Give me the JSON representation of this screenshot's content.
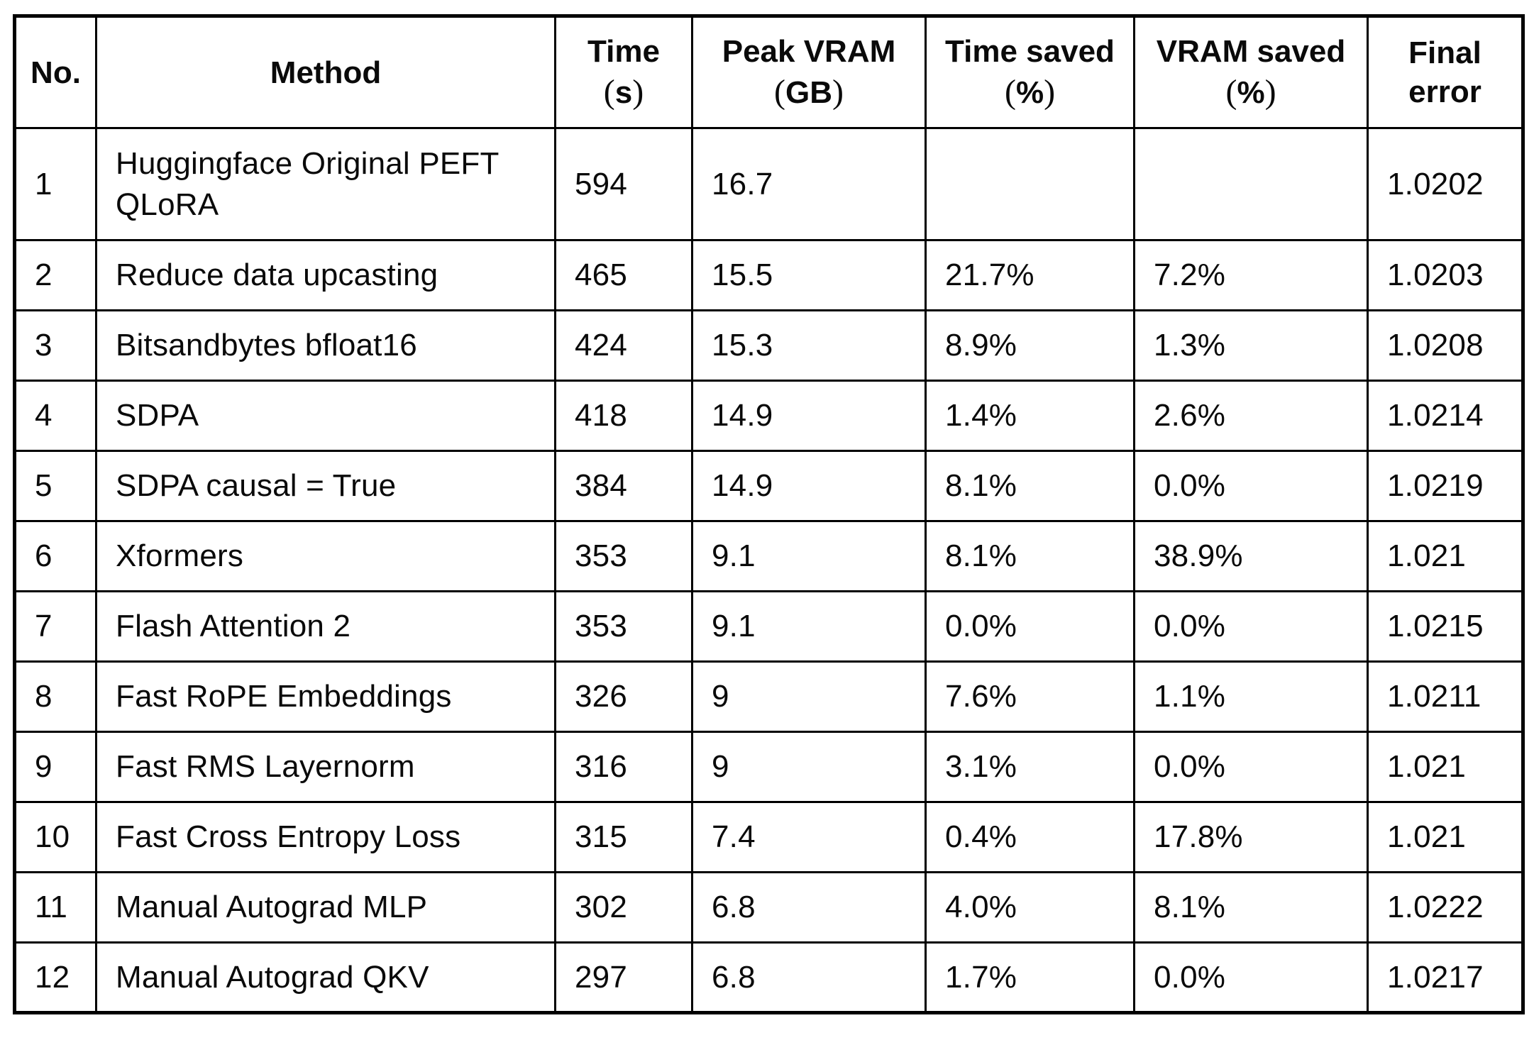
{
  "colors": {
    "background": "#ffffff",
    "text": "#0a0a0a",
    "border": "#000000"
  },
  "table": {
    "headers": [
      {
        "key": "no",
        "top": "No."
      },
      {
        "key": "method",
        "top": "Method"
      },
      {
        "key": "time",
        "top": "Time",
        "paren_open": "(",
        "unit": "s",
        "paren_close": ")"
      },
      {
        "key": "peak-vram",
        "top": "Peak VRAM",
        "paren_open": "(",
        "unit": "GB",
        "paren_close": ")"
      },
      {
        "key": "time-saved",
        "top": "Time saved",
        "paren_open": "(",
        "unit": "%",
        "paren_close": ")"
      },
      {
        "key": "vram-saved",
        "top": "VRAM saved",
        "paren_open": "(",
        "unit": "%",
        "paren_close": ")"
      },
      {
        "key": "final-error",
        "top": "Final",
        "bottom": "error"
      }
    ],
    "rows": [
      {
        "no": "1",
        "method": "Huggingface Original PEFT QLoRA",
        "time": "594",
        "peak_vram": "16.7",
        "time_saved": "",
        "vram_saved": "",
        "final_error": "1.0202"
      },
      {
        "no": "2",
        "method": "Reduce data upcasting",
        "time": "465",
        "peak_vram": "15.5",
        "time_saved": "21.7%",
        "vram_saved": "7.2%",
        "final_error": "1.0203"
      },
      {
        "no": "3",
        "method": "Bitsandbytes bfloat16",
        "time": "424",
        "peak_vram": "15.3",
        "time_saved": "8.9%",
        "vram_saved": "1.3%",
        "final_error": "1.0208"
      },
      {
        "no": "4",
        "method": "SDPA",
        "time": "418",
        "peak_vram": "14.9",
        "time_saved": "1.4%",
        "vram_saved": "2.6%",
        "final_error": "1.0214"
      },
      {
        "no": "5",
        "method": "SDPA causal = True",
        "time": "384",
        "peak_vram": "14.9",
        "time_saved": "8.1%",
        "vram_saved": "0.0%",
        "final_error": "1.0219"
      },
      {
        "no": "6",
        "method": "Xformers",
        "time": "353",
        "peak_vram": "9.1",
        "time_saved": "8.1%",
        "vram_saved": "38.9%",
        "final_error": "1.021"
      },
      {
        "no": "7",
        "method": "Flash Attention 2",
        "time": "353",
        "peak_vram": "9.1",
        "time_saved": "0.0%",
        "vram_saved": "0.0%",
        "final_error": "1.0215"
      },
      {
        "no": "8",
        "method": "Fast RoPE Embeddings",
        "time": "326",
        "peak_vram": "9",
        "time_saved": "7.6%",
        "vram_saved": "1.1%",
        "final_error": "1.0211"
      },
      {
        "no": "9",
        "method": "Fast RMS Layernorm",
        "time": "316",
        "peak_vram": "9",
        "time_saved": "3.1%",
        "vram_saved": "0.0%",
        "final_error": "1.021"
      },
      {
        "no": "10",
        "method": "Fast Cross Entropy Loss",
        "time": "315",
        "peak_vram": "7.4",
        "time_saved": "0.4%",
        "vram_saved": "17.8%",
        "final_error": "1.021"
      },
      {
        "no": "11",
        "method": "Manual Autograd MLP",
        "time": "302",
        "peak_vram": "6.8",
        "time_saved": "4.0%",
        "vram_saved": "8.1%",
        "final_error": "1.0222"
      },
      {
        "no": "12",
        "method": "Manual Autograd QKV",
        "time": "297",
        "peak_vram": "6.8",
        "time_saved": "1.7%",
        "vram_saved": "0.0%",
        "final_error": "1.0217"
      }
    ]
  }
}
